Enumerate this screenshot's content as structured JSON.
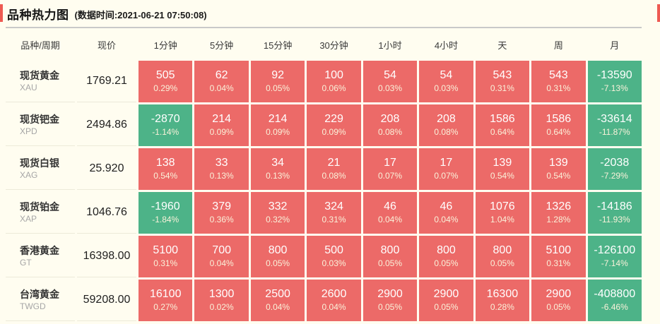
{
  "header": {
    "title": "品种热力图",
    "subtitle": "(数据时间:2021-06-21 07:50:08)"
  },
  "chart_data": {
    "type": "heatmap",
    "title": "品种热力图",
    "subtitle": "(数据时间:2021-06-21 07:50:08)",
    "colors": {
      "up": "#ec6a68",
      "down": "#4db388"
    },
    "columns": [
      "品种/周期",
      "现价",
      "1分钟",
      "5分钟",
      "15分钟",
      "30分钟",
      "1小时",
      "4小时",
      "天",
      "周",
      "月"
    ],
    "rows": [
      {
        "name": "现货黄金",
        "code": "XAU",
        "price": "1769.21",
        "cells": [
          {
            "value": "505",
            "pct": "0.29%",
            "dir": "up"
          },
          {
            "value": "62",
            "pct": "0.04%",
            "dir": "up"
          },
          {
            "value": "92",
            "pct": "0.05%",
            "dir": "up"
          },
          {
            "value": "100",
            "pct": "0.06%",
            "dir": "up"
          },
          {
            "value": "54",
            "pct": "0.03%",
            "dir": "up"
          },
          {
            "value": "54",
            "pct": "0.03%",
            "dir": "up"
          },
          {
            "value": "543",
            "pct": "0.31%",
            "dir": "up"
          },
          {
            "value": "543",
            "pct": "0.31%",
            "dir": "up"
          },
          {
            "value": "-13590",
            "pct": "-7.13%",
            "dir": "down"
          }
        ]
      },
      {
        "name": "现货钯金",
        "code": "XPD",
        "price": "2494.86",
        "cells": [
          {
            "value": "-2870",
            "pct": "-1.14%",
            "dir": "down"
          },
          {
            "value": "214",
            "pct": "0.09%",
            "dir": "up"
          },
          {
            "value": "214",
            "pct": "0.09%",
            "dir": "up"
          },
          {
            "value": "229",
            "pct": "0.09%",
            "dir": "up"
          },
          {
            "value": "208",
            "pct": "0.08%",
            "dir": "up"
          },
          {
            "value": "208",
            "pct": "0.08%",
            "dir": "up"
          },
          {
            "value": "1586",
            "pct": "0.64%",
            "dir": "up"
          },
          {
            "value": "1586",
            "pct": "0.64%",
            "dir": "up"
          },
          {
            "value": "-33614",
            "pct": "-11.87%",
            "dir": "down"
          }
        ]
      },
      {
        "name": "现货白银",
        "code": "XAG",
        "price": "25.920",
        "cells": [
          {
            "value": "138",
            "pct": "0.54%",
            "dir": "up"
          },
          {
            "value": "33",
            "pct": "0.13%",
            "dir": "up"
          },
          {
            "value": "34",
            "pct": "0.13%",
            "dir": "up"
          },
          {
            "value": "21",
            "pct": "0.08%",
            "dir": "up"
          },
          {
            "value": "17",
            "pct": "0.07%",
            "dir": "up"
          },
          {
            "value": "17",
            "pct": "0.07%",
            "dir": "up"
          },
          {
            "value": "139",
            "pct": "0.54%",
            "dir": "up"
          },
          {
            "value": "139",
            "pct": "0.54%",
            "dir": "up"
          },
          {
            "value": "-2038",
            "pct": "-7.29%",
            "dir": "down"
          }
        ]
      },
      {
        "name": "现货铂金",
        "code": "XAP",
        "price": "1046.76",
        "cells": [
          {
            "value": "-1960",
            "pct": "-1.84%",
            "dir": "down"
          },
          {
            "value": "379",
            "pct": "0.36%",
            "dir": "up"
          },
          {
            "value": "332",
            "pct": "0.32%",
            "dir": "up"
          },
          {
            "value": "324",
            "pct": "0.31%",
            "dir": "up"
          },
          {
            "value": "46",
            "pct": "0.04%",
            "dir": "up"
          },
          {
            "value": "46",
            "pct": "0.04%",
            "dir": "up"
          },
          {
            "value": "1076",
            "pct": "1.04%",
            "dir": "up"
          },
          {
            "value": "1326",
            "pct": "1.28%",
            "dir": "up"
          },
          {
            "value": "-14186",
            "pct": "-11.93%",
            "dir": "down"
          }
        ]
      },
      {
        "name": "香港黄金",
        "code": "GT",
        "price": "16398.00",
        "cells": [
          {
            "value": "5100",
            "pct": "0.31%",
            "dir": "up"
          },
          {
            "value": "700",
            "pct": "0.04%",
            "dir": "up"
          },
          {
            "value": "800",
            "pct": "0.05%",
            "dir": "up"
          },
          {
            "value": "500",
            "pct": "0.03%",
            "dir": "up"
          },
          {
            "value": "800",
            "pct": "0.05%",
            "dir": "up"
          },
          {
            "value": "800",
            "pct": "0.05%",
            "dir": "up"
          },
          {
            "value": "800",
            "pct": "0.05%",
            "dir": "up"
          },
          {
            "value": "5100",
            "pct": "0.31%",
            "dir": "up"
          },
          {
            "value": "-126100",
            "pct": "-7.14%",
            "dir": "down"
          }
        ]
      },
      {
        "name": "台湾黄金",
        "code": "TWGD",
        "price": "59208.00",
        "cells": [
          {
            "value": "16100",
            "pct": "0.27%",
            "dir": "up"
          },
          {
            "value": "1300",
            "pct": "0.02%",
            "dir": "up"
          },
          {
            "value": "2500",
            "pct": "0.04%",
            "dir": "up"
          },
          {
            "value": "2600",
            "pct": "0.04%",
            "dir": "up"
          },
          {
            "value": "2900",
            "pct": "0.05%",
            "dir": "up"
          },
          {
            "value": "2900",
            "pct": "0.05%",
            "dir": "up"
          },
          {
            "value": "16300",
            "pct": "0.28%",
            "dir": "up"
          },
          {
            "value": "2900",
            "pct": "0.05%",
            "dir": "up"
          },
          {
            "value": "-408800",
            "pct": "-6.46%",
            "dir": "down"
          }
        ]
      }
    ]
  }
}
